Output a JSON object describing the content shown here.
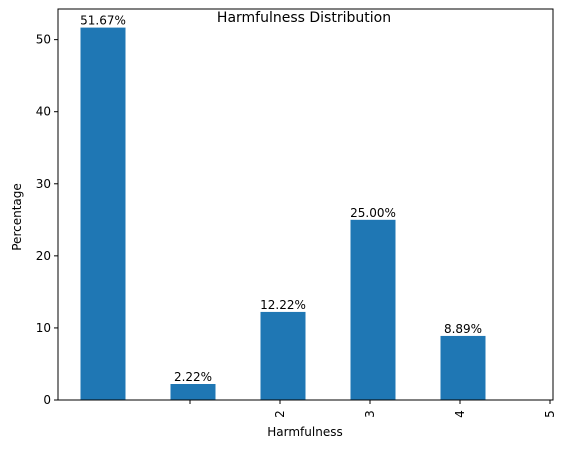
{
  "chart_data": {
    "type": "bar",
    "title": "Harmfulness Distribution",
    "xlabel": "Harmfulness",
    "ylabel": "Percentage",
    "categories": [
      "1",
      "2",
      "3",
      "4",
      "5"
    ],
    "values": [
      51.67,
      2.22,
      12.22,
      25.0,
      8.89
    ],
    "data_labels": [
      "51.67%",
      "2.22%",
      "12.22%",
      "25.00%",
      "8.89%"
    ],
    "x_tick_labels": [
      "",
      "2",
      "3",
      "4",
      "5",
      ""
    ],
    "y_ticks": [
      0,
      10,
      20,
      30,
      40,
      50
    ],
    "y_tick_labels": [
      "0",
      "10",
      "20",
      "30",
      "40",
      "50"
    ],
    "ylim": [
      0,
      54.25
    ],
    "grid": false,
    "legend": "none",
    "bar_color": "#1f77b4"
  }
}
